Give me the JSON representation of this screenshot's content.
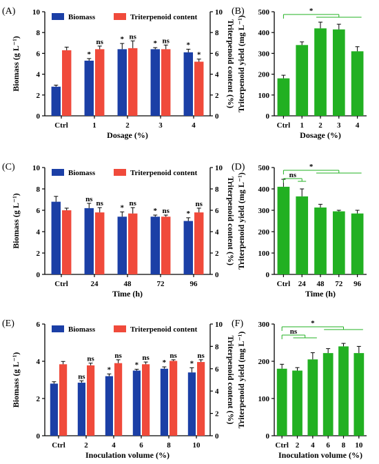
{
  "colors": {
    "biomass": "#1b3fa6",
    "triterpenoid": "#f04a3b",
    "yield": "#22b022",
    "sig_biomass": "#2a50c8",
    "sig_triterpenoid": "#c8553d",
    "bracket": "#22b022"
  },
  "chart_data": [
    {
      "panel": "(A)",
      "type": "bar",
      "categories": [
        "Ctrl",
        "1",
        "2",
        "3",
        "4"
      ],
      "xlabel": "Dosage (%)",
      "ylabel": "Biomass (g L⁻¹)",
      "y2label": "Triterpenoid content (%)",
      "ylim": [
        0,
        10
      ],
      "y2lim": [
        0,
        10
      ],
      "yticks": [
        "0",
        "2",
        "4",
        "6",
        "8",
        "10"
      ],
      "y2ticks": [
        "0",
        "2",
        "4",
        "6",
        "8",
        "10"
      ],
      "legend": [
        "Biomass",
        "Triterpenoid content"
      ],
      "series": [
        {
          "name": "Biomass",
          "values": [
            2.8,
            5.3,
            6.4,
            6.4,
            6.1
          ],
          "errors": [
            0.15,
            0.2,
            0.55,
            0.15,
            0.3
          ],
          "sig": [
            "",
            "*",
            "*",
            "*",
            "*"
          ]
        },
        {
          "name": "Triterpenoid content",
          "values": [
            6.3,
            6.4,
            6.5,
            6.4,
            5.2
          ],
          "errors": [
            0.3,
            0.3,
            0.7,
            0.4,
            0.25
          ],
          "sig": [
            "",
            "ns",
            "ns",
            "ns",
            "*"
          ]
        }
      ]
    },
    {
      "panel": "(B)",
      "type": "bar",
      "categories": [
        "Ctrl",
        "1",
        "2",
        "3",
        "4"
      ],
      "xlabel": "Dosage (%)",
      "ylabel": "Triterpenoid yield (mg L⁻¹)",
      "ylim": [
        0,
        500
      ],
      "yticks": [
        "0",
        "100",
        "200",
        "300",
        "400",
        "500"
      ],
      "series": [
        {
          "name": "",
          "values": [
            180,
            340,
            420,
            415,
            310
          ],
          "errors": [
            15,
            15,
            30,
            25,
            22
          ]
        }
      ],
      "annotations": [
        {
          "label": "*",
          "from": 0,
          "to": [
            2,
            4
          ]
        }
      ]
    },
    {
      "panel": "(C)",
      "type": "bar",
      "categories": [
        "Ctrl",
        "24",
        "48",
        "72",
        "96"
      ],
      "xlabel": "Time (h)",
      "ylabel": "Biomass (g L⁻¹)",
      "y2label": "Triterpenoid content (%)",
      "ylim": [
        0,
        10
      ],
      "y2lim": [
        0,
        10
      ],
      "yticks": [
        "0",
        "2",
        "4",
        "6",
        "8",
        "10"
      ],
      "y2ticks": [
        "0",
        "2",
        "4",
        "6",
        "8",
        "10"
      ],
      "legend": [
        "Biomass",
        "Triterpenoid content"
      ],
      "series": [
        {
          "name": "Biomass",
          "values": [
            6.8,
            6.2,
            5.4,
            5.4,
            5.0
          ],
          "errors": [
            0.5,
            0.45,
            0.45,
            0.15,
            0.3
          ],
          "sig": [
            "",
            "ns",
            "*",
            "*",
            "*"
          ]
        },
        {
          "name": "Triterpenoid content",
          "values": [
            6.0,
            5.8,
            5.7,
            5.4,
            5.8
          ],
          "errors": [
            0.2,
            0.45,
            0.55,
            0.15,
            0.4
          ],
          "sig": [
            "",
            "ns",
            "ns",
            "ns",
            "ns"
          ]
        }
      ]
    },
    {
      "panel": "(D)",
      "type": "bar",
      "categories": [
        "Ctrl",
        "24",
        "48",
        "72",
        "96"
      ],
      "xlabel": "Time (h)",
      "ylabel": "Triterpenoid yield (mg L⁻¹)",
      "ylim": [
        0,
        500
      ],
      "yticks": [
        "0",
        "100",
        "200",
        "300",
        "400",
        "500"
      ],
      "series": [
        {
          "name": "",
          "values": [
            410,
            365,
            313,
            295,
            285
          ],
          "errors": [
            35,
            35,
            15,
            5,
            15
          ]
        }
      ],
      "annotations": [
        {
          "label": "ns",
          "from": 0,
          "to": [
            1,
            1
          ]
        },
        {
          "label": "*",
          "from": 0,
          "to": [
            2,
            4
          ]
        }
      ]
    },
    {
      "panel": "(E)",
      "type": "bar",
      "categories": [
        "Ctrl",
        "2",
        "4",
        "6",
        "8",
        "10"
      ],
      "xlabel": "Inoculation volume (%)",
      "ylabel": "Biomass (g L⁻¹)",
      "y2label": "Triterpenoid content (%)",
      "ylim": [
        0,
        6
      ],
      "y2lim": [
        0,
        10
      ],
      "yticks": [
        "0",
        "2",
        "4",
        "6"
      ],
      "y2ticks": [
        "0",
        "2",
        "4",
        "6",
        "8",
        "10"
      ],
      "legend": [
        "Biomass",
        "Triterpenoid content"
      ],
      "series": [
        {
          "name": "Biomass",
          "values": [
            2.8,
            2.85,
            3.2,
            3.5,
            3.6,
            3.4
          ],
          "errors": [
            0.1,
            0.1,
            0.12,
            0.07,
            0.1,
            0.25
          ],
          "sig": [
            "",
            "ns",
            "*",
            "*",
            "*",
            "*"
          ]
        },
        {
          "name": "Triterpenoid content",
          "values": [
            6.4,
            6.3,
            6.5,
            6.4,
            6.7,
            6.6
          ],
          "errors": [
            0.25,
            0.2,
            0.3,
            0.2,
            0.1,
            0.2
          ],
          "sig": [
            "",
            "ns",
            "ns",
            "ns",
            "ns",
            "ns"
          ]
        }
      ]
    },
    {
      "panel": "(F)",
      "type": "bar",
      "categories": [
        "Ctrl",
        "2",
        "4",
        "6",
        "8",
        "10"
      ],
      "xlabel": "Inoculation volume (%)",
      "ylabel": "Triterpenoid yield (mg L⁻¹)",
      "ylim": [
        0,
        300
      ],
      "yticks": [
        "0",
        "100",
        "200",
        "300"
      ],
      "series": [
        {
          "name": "",
          "values": [
            180,
            175,
            205,
            222,
            240,
            222
          ],
          "errors": [
            12,
            8,
            18,
            12,
            8,
            18
          ]
        }
      ],
      "annotations": [
        {
          "label": "ns",
          "from": 0,
          "to": [
            1,
            2
          ]
        },
        {
          "label": "*",
          "from": 0,
          "to": [
            3,
            5
          ]
        }
      ]
    }
  ]
}
